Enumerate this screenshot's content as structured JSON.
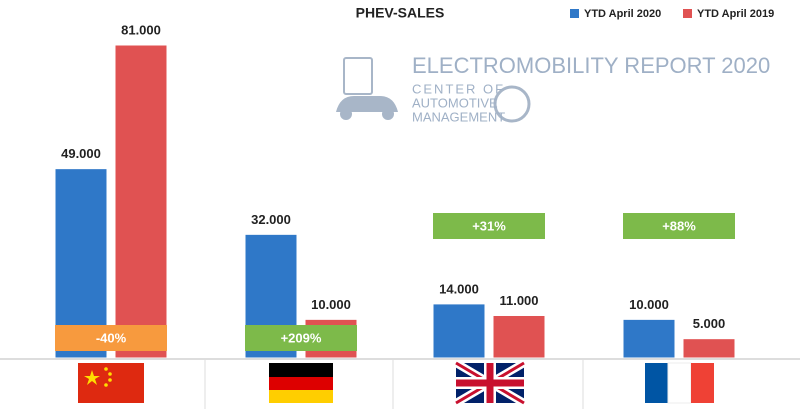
{
  "chart_data": {
    "type": "bar",
    "title": "PHEV-SALES",
    "categories": [
      null,
      null,
      null,
      null
    ],
    "series": [
      {
        "name": "YTD April 2020",
        "color": "#2f78c8",
        "values": [
          49000,
          32000,
          14000,
          10000
        ],
        "value_labels": [
          "49.000",
          "32.000",
          "14.000",
          "10.000"
        ]
      },
      {
        "name": "YTD April 2019",
        "color": "#e05252",
        "values": [
          81000,
          10000,
          11000,
          5000
        ],
        "value_labels": [
          "81.000",
          "10.000",
          "11.000",
          "5.000"
        ]
      }
    ],
    "annotations": [
      {
        "text": "-40%",
        "color": "#f79a3e"
      },
      {
        "text": "+209%",
        "color": "#7dba4a"
      },
      {
        "text": "+31%",
        "color": "#7dba4a"
      },
      {
        "text": "+88%",
        "color": "#7dba4a"
      }
    ],
    "logo": {
      "title": "ELECTROMOBILITY REPORT 2020",
      "lines": [
        "CENTER OF",
        "AUTOMOTIVE",
        "MANAGEMENT"
      ]
    }
  }
}
